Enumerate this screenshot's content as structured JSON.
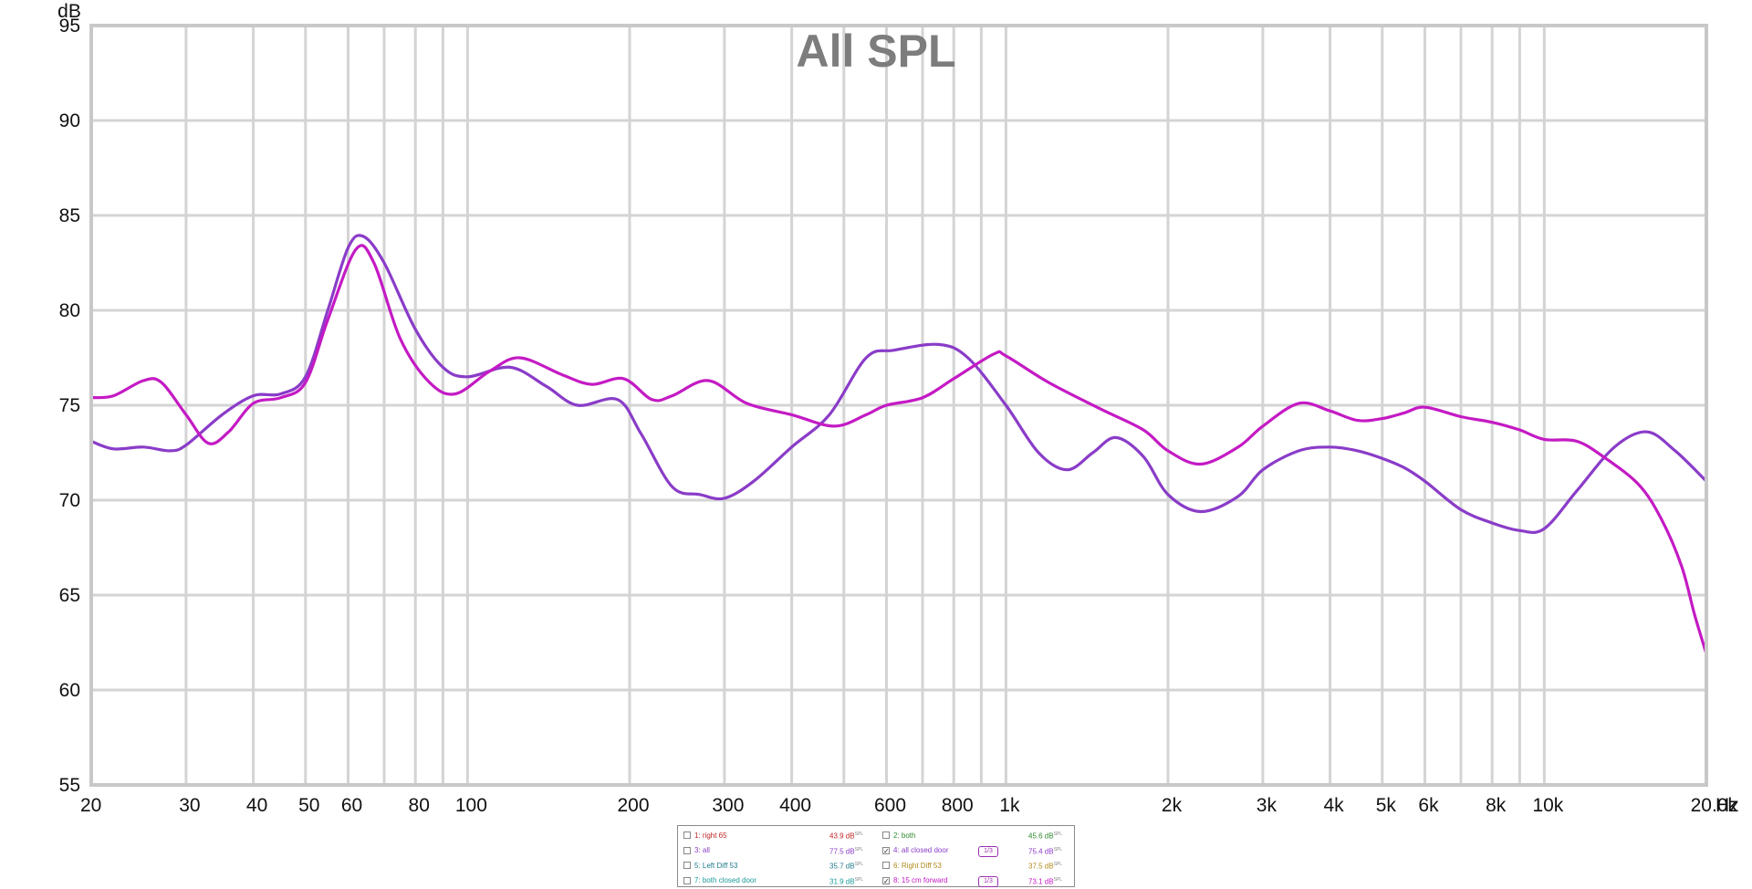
{
  "chart_data": {
    "type": "line",
    "title": "All SPL",
    "ylabel": "dB",
    "xunit": "Hz",
    "xscale": "log",
    "xlim": [
      20,
      20000
    ],
    "ylim": [
      55,
      95
    ],
    "grid": true,
    "y_ticks": [
      55,
      60,
      65,
      70,
      75,
      80,
      85,
      90,
      95
    ],
    "x_ticks": [
      {
        "v": 20,
        "label": "20"
      },
      {
        "v": 30,
        "label": "30"
      },
      {
        "v": 40,
        "label": "40"
      },
      {
        "v": 50,
        "label": "50"
      },
      {
        "v": 60,
        "label": "60"
      },
      {
        "v": 80,
        "label": "80"
      },
      {
        "v": 100,
        "label": "100"
      },
      {
        "v": 200,
        "label": "200"
      },
      {
        "v": 300,
        "label": "300"
      },
      {
        "v": 400,
        "label": "400"
      },
      {
        "v": 600,
        "label": "600"
      },
      {
        "v": 800,
        "label": "800"
      },
      {
        "v": 1000,
        "label": "1k"
      },
      {
        "v": 2000,
        "label": "2k"
      },
      {
        "v": 3000,
        "label": "3k"
      },
      {
        "v": 4000,
        "label": "4k"
      },
      {
        "v": 5000,
        "label": "5k"
      },
      {
        "v": 6000,
        "label": "6k"
      },
      {
        "v": 8000,
        "label": "8k"
      },
      {
        "v": 10000,
        "label": "10k"
      },
      {
        "v": 20000,
        "label": "20.0k"
      }
    ],
    "x_minor_grid": [
      70,
      90,
      500,
      700,
      900,
      7000,
      9000
    ],
    "series": [
      {
        "name": "4: all closed door",
        "color": "#8a3cc8",
        "points": [
          [
            20,
            73.1
          ],
          [
            22,
            72.7
          ],
          [
            25,
            72.8
          ],
          [
            28,
            72.6
          ],
          [
            30,
            72.9
          ],
          [
            35,
            74.5
          ],
          [
            40,
            75.5
          ],
          [
            45,
            75.6
          ],
          [
            50,
            76.5
          ],
          [
            55,
            80
          ],
          [
            60,
            83.3
          ],
          [
            64,
            83.9
          ],
          [
            70,
            82.5
          ],
          [
            80,
            79
          ],
          [
            90,
            77
          ],
          [
            100,
            76.5
          ],
          [
            120,
            77
          ],
          [
            140,
            76
          ],
          [
            160,
            75
          ],
          [
            190,
            75.3
          ],
          [
            210,
            73.5
          ],
          [
            240,
            70.7
          ],
          [
            270,
            70.3
          ],
          [
            300,
            70.1
          ],
          [
            340,
            71
          ],
          [
            400,
            72.8
          ],
          [
            470,
            74.5
          ],
          [
            550,
            77.5
          ],
          [
            620,
            77.9
          ],
          [
            750,
            78.2
          ],
          [
            850,
            77.5
          ],
          [
            1000,
            75
          ],
          [
            1150,
            72.5
          ],
          [
            1300,
            71.6
          ],
          [
            1450,
            72.5
          ],
          [
            1600,
            73.3
          ],
          [
            1800,
            72.3
          ],
          [
            2000,
            70.3
          ],
          [
            2300,
            69.4
          ],
          [
            2700,
            70.2
          ],
          [
            3000,
            71.6
          ],
          [
            3500,
            72.6
          ],
          [
            4000,
            72.8
          ],
          [
            4500,
            72.6
          ],
          [
            5000,
            72.2
          ],
          [
            5500,
            71.7
          ],
          [
            6000,
            71.0
          ],
          [
            7000,
            69.5
          ],
          [
            8000,
            68.8
          ],
          [
            9000,
            68.4
          ],
          [
            10000,
            68.5
          ],
          [
            11500,
            70.5
          ],
          [
            13500,
            72.8
          ],
          [
            15500,
            73.6
          ],
          [
            17500,
            72.6
          ],
          [
            20000,
            71.0
          ]
        ]
      },
      {
        "name": "8: 15 cm forward",
        "color": "#c41ac4",
        "points": [
          [
            20,
            75.4
          ],
          [
            22,
            75.5
          ],
          [
            25,
            76.3
          ],
          [
            27,
            76.2
          ],
          [
            30,
            74.5
          ],
          [
            33,
            73
          ],
          [
            36,
            73.6
          ],
          [
            40,
            75.1
          ],
          [
            45,
            75.4
          ],
          [
            50,
            76.2
          ],
          [
            55,
            79.5
          ],
          [
            62,
            83.2
          ],
          [
            67,
            82.5
          ],
          [
            75,
            78.5
          ],
          [
            85,
            76.2
          ],
          [
            95,
            75.6
          ],
          [
            110,
            76.8
          ],
          [
            125,
            77.5
          ],
          [
            150,
            76.6
          ],
          [
            170,
            76.1
          ],
          [
            195,
            76.4
          ],
          [
            220,
            75.3
          ],
          [
            240,
            75.5
          ],
          [
            280,
            76.3
          ],
          [
            330,
            75.1
          ],
          [
            400,
            74.5
          ],
          [
            480,
            73.9
          ],
          [
            550,
            74.5
          ],
          [
            600,
            75.0
          ],
          [
            700,
            75.4
          ],
          [
            800,
            76.4
          ],
          [
            950,
            77.7
          ],
          [
            1000,
            77.6
          ],
          [
            1200,
            76.2
          ],
          [
            1500,
            74.8
          ],
          [
            1800,
            73.7
          ],
          [
            2000,
            72.6
          ],
          [
            2300,
            71.9
          ],
          [
            2700,
            72.8
          ],
          [
            3000,
            73.9
          ],
          [
            3500,
            75.1
          ],
          [
            4000,
            74.7
          ],
          [
            4500,
            74.2
          ],
          [
            5000,
            74.3
          ],
          [
            5500,
            74.6
          ],
          [
            6000,
            74.9
          ],
          [
            7000,
            74.4
          ],
          [
            8000,
            74.1
          ],
          [
            9000,
            73.7
          ],
          [
            10000,
            73.2
          ],
          [
            11500,
            73.1
          ],
          [
            13000,
            72.2
          ],
          [
            15000,
            70.8
          ],
          [
            16500,
            69
          ],
          [
            18000,
            66.5
          ],
          [
            19000,
            64
          ],
          [
            20000,
            61.9
          ]
        ]
      }
    ]
  },
  "legend": {
    "entries": [
      {
        "label": "1: right 65",
        "value": "43.9 dB",
        "unit": "SPL",
        "color": "#c02424",
        "checked": false,
        "smoothing": ""
      },
      {
        "label": "2: both",
        "value": "45.6 dB",
        "unit": "SPL",
        "color": "#2e8a2e",
        "checked": false,
        "smoothing": ""
      },
      {
        "label": "3: all",
        "value": "77.5 dB",
        "unit": "SPL",
        "color": "#8a3cc8",
        "checked": false,
        "smoothing": ""
      },
      {
        "label": "4: all closed door",
        "value": "75.4 dB",
        "unit": "SPL",
        "color": "#8a3cc8",
        "checked": true,
        "smoothing": "1/3"
      },
      {
        "label": "5: Left Diff 53",
        "value": "35.7 dB",
        "unit": "SPL",
        "color": "#1f7a8c",
        "checked": false,
        "smoothing": ""
      },
      {
        "label": "6: Right Diff 53",
        "value": "37.5 dB",
        "unit": "SPL",
        "color": "#b08a1a",
        "checked": false,
        "smoothing": ""
      },
      {
        "label": "7: both closed door",
        "value": "31.9 dB",
        "unit": "SPL",
        "color": "#1a9a9a",
        "checked": false,
        "smoothing": ""
      },
      {
        "label": "8: 15 cm forward",
        "value": "73.1 dB",
        "unit": "SPL",
        "color": "#c41ac4",
        "checked": true,
        "smoothing": "1/3"
      }
    ]
  }
}
